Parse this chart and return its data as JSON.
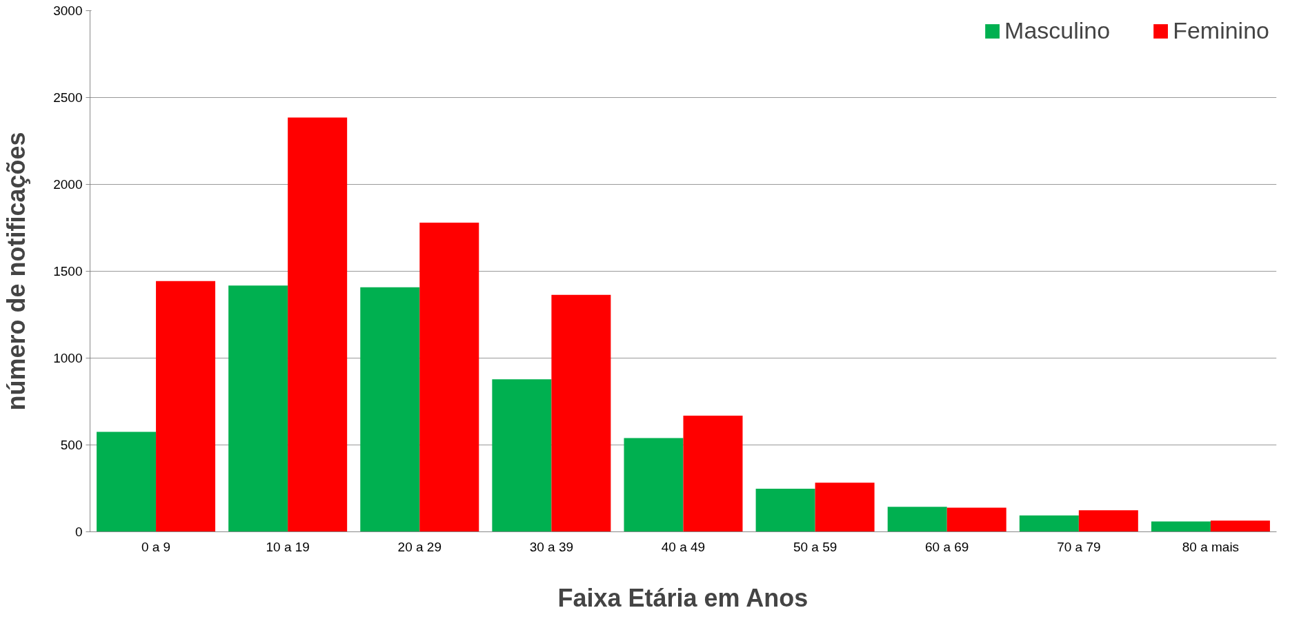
{
  "chart_data": {
    "type": "bar",
    "xlabel": "Faixa Etária em Anos",
    "ylabel": "número de notificações",
    "categories": [
      "0 a 9",
      "10 a 19",
      "20 a 29",
      "30 a 39",
      "40 a 49",
      "50 a 59",
      "60 a 69",
      "70 a 79",
      "80 a mais"
    ],
    "series": [
      {
        "name": "Masculino",
        "color": "#00b050",
        "values": [
          575,
          1418,
          1408,
          878,
          540,
          248,
          144,
          94,
          60
        ]
      },
      {
        "name": "Feminino",
        "color": "#ff0000",
        "values": [
          1443,
          2385,
          1780,
          1364,
          669,
          283,
          139,
          124,
          64
        ]
      }
    ],
    "ylim": [
      0,
      3000
    ],
    "yticks": [
      0,
      500,
      1000,
      1500,
      2000,
      2500,
      3000
    ],
    "grid": "y",
    "legend": "top right"
  }
}
